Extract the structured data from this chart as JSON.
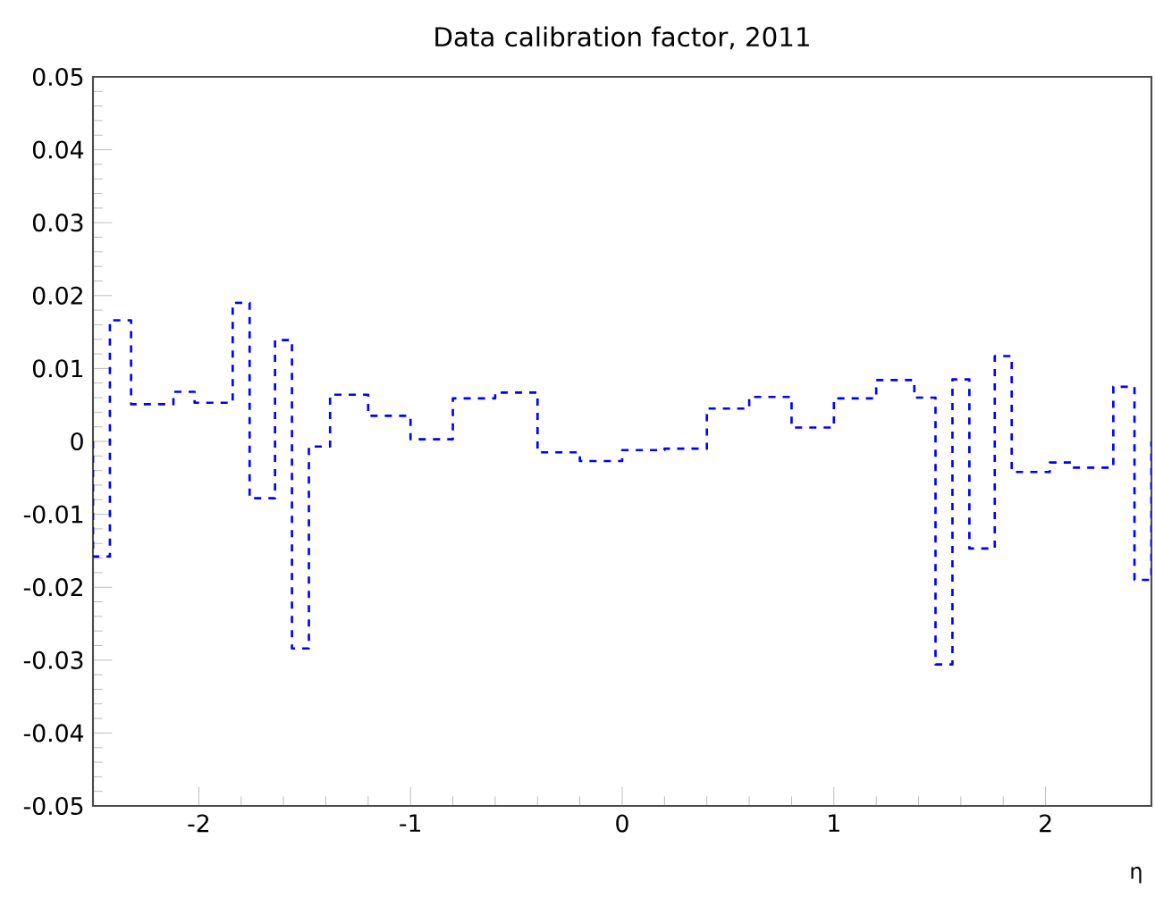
{
  "chart_data": {
    "type": "histogram",
    "title": "Data calibration factor, 2011",
    "xlabel": "η",
    "bins": [
      -2.5,
      -2.42,
      -2.32,
      -2.12,
      -2.02,
      -1.84,
      -1.76,
      -1.64,
      -1.56,
      -1.48,
      -1.38,
      -1.2,
      -1.0,
      -0.8,
      -0.6,
      -0.4,
      -0.2,
      0,
      0.2,
      0.4,
      0.6,
      0.8,
      1.0,
      1.2,
      1.38,
      1.48,
      1.56,
      1.64,
      1.76,
      1.84,
      2.02,
      2.12,
      2.32,
      2.42,
      2.5
    ],
    "values": [
      -0.0158,
      0.0166,
      0.0051,
      0.0068,
      0.0053,
      0.019,
      -0.0078,
      0.0139,
      -0.0284,
      -0.0007,
      0.0064,
      0.0035,
      0.0003,
      0.0059,
      0.0067,
      -0.0015,
      -0.0027,
      -0.0012,
      -0.001,
      0.0045,
      0.0061,
      0.0019,
      0.0059,
      0.0084,
      0.006,
      -0.0306,
      0.0085,
      -0.0147,
      0.0117,
      -0.0042,
      -0.0029,
      -0.0036,
      0.0075,
      -0.019
    ],
    "color": "#0000ff",
    "line_style": "dashed",
    "grid": false,
    "xlim": [
      -2.5,
      2.5
    ],
    "ylim": [
      -0.05,
      0.05
    ],
    "xticks": [
      -2,
      -1,
      0,
      1,
      2
    ],
    "yticks": [
      -0.05,
      -0.04,
      -0.03,
      -0.02,
      -0.01,
      0,
      0.01,
      0.02,
      0.03,
      0.04,
      0.05
    ]
  }
}
